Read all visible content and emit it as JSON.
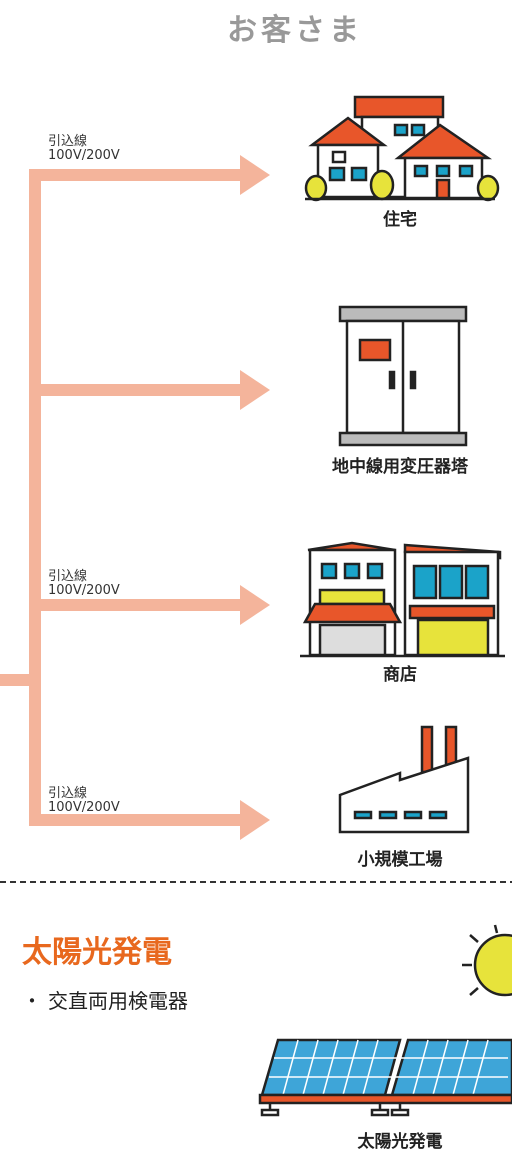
{
  "header": {
    "title": "お客さま"
  },
  "branches": [
    {
      "line_label": [
        "引込線",
        "100V/200V"
      ],
      "label": "住宅"
    },
    {
      "label": "地中線用変圧器塔"
    },
    {
      "line_label": [
        "引込線",
        "100V/200V"
      ],
      "label": "商店"
    },
    {
      "line_label": [
        "引込線",
        "100V/200V"
      ],
      "label": "小規模工場"
    }
  ],
  "solar": {
    "title": "太陽光発電",
    "items": [
      "交直両用検電器"
    ],
    "caption": "太陽光発電"
  }
}
